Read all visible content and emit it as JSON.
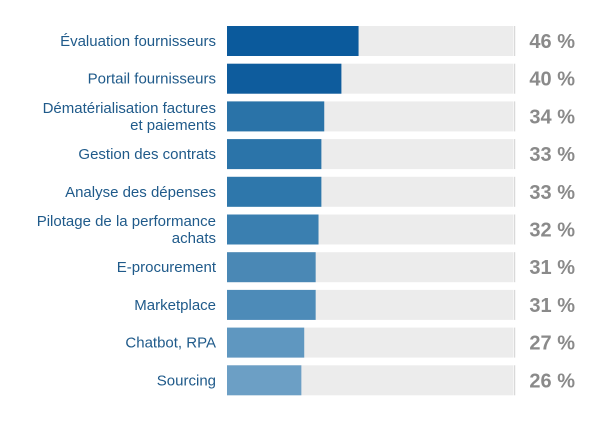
{
  "chart_data": {
    "type": "bar",
    "orientation": "horizontal",
    "categories": [
      "Évaluation fournisseurs",
      "Portail fournisseurs",
      "Dématérialisation factures et paiements",
      "Gestion des contrats",
      "Analyse des dépenses",
      "Pilotage de la performance achats",
      "E-procurement",
      "Marketplace",
      "Chatbot, RPA",
      "Sourcing"
    ],
    "category_lines": [
      [
        "Évaluation fournisseurs"
      ],
      [
        "Portail fournisseurs"
      ],
      [
        "Dématérialisation factures",
        "et paiements"
      ],
      [
        "Gestion des contrats"
      ],
      [
        "Analyse des dépenses"
      ],
      [
        "Pilotage de la performance",
        "achats"
      ],
      [
        "E-procurement"
      ],
      [
        "Marketplace"
      ],
      [
        "Chatbot, RPA"
      ],
      [
        "Sourcing"
      ]
    ],
    "values": [
      46,
      40,
      34,
      33,
      33,
      32,
      31,
      31,
      27,
      26
    ],
    "value_labels": [
      "46 %",
      "40 %",
      "34 %",
      "33 %",
      "33 %",
      "32 %",
      "31 %",
      "31 %",
      "27 %",
      "26 %"
    ],
    "xlim": [
      0,
      100
    ],
    "title": "",
    "xlabel": "",
    "ylabel": "",
    "grid": false,
    "legend": "none",
    "colors": {
      "bars": [
        "#0b5a9c",
        "#0e5c9d",
        "#2a73a8",
        "#2b74a9",
        "#2e77ab",
        "#3a7fb0",
        "#4a88b5",
        "#4d8bb8",
        "#5f97c0",
        "#6c9fc5"
      ],
      "track": "#ececec",
      "category_text": "#1f5a8a",
      "value_text": "#8a8a8a",
      "separator": "#d9d9d9"
    }
  }
}
